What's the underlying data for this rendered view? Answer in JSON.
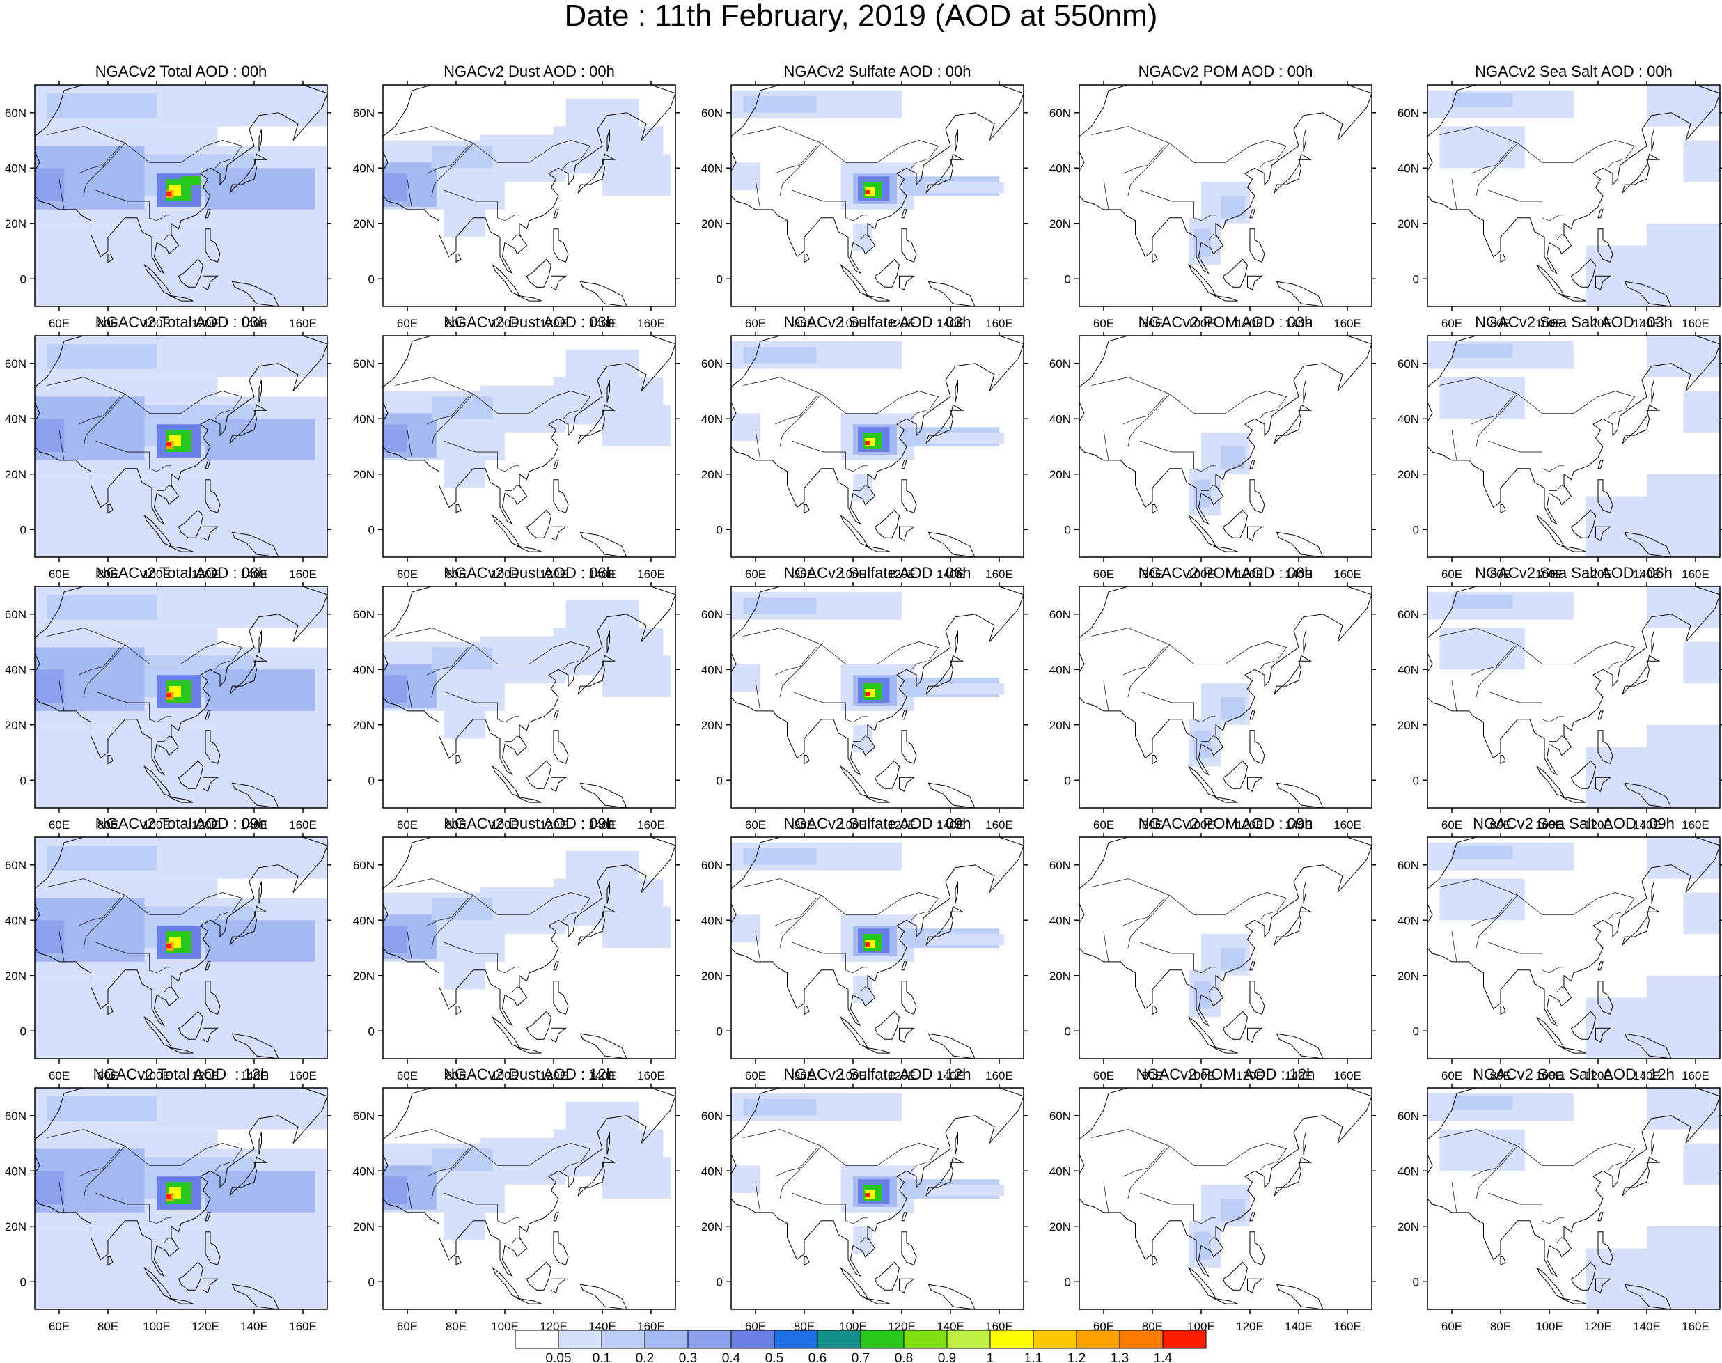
{
  "title": "Date : 11th February, 2019 (AOD at 550nm)",
  "panel_titles": [
    [
      "NGACv2 Total AOD : 00h",
      "NGACv2 Dust AOD : 00h",
      "NGACv2 Sulfate AOD : 00h",
      "NGACv2 POM AOD : 00h",
      "NGACv2 Sea Salt AOD : 00h"
    ],
    [
      "NGACv2 Total AOD : 03h",
      "NGACv2 Dust AOD : 03h",
      "NGACv2 Sulfate AOD : 03h",
      "NGACv2 POM AOD : 03h",
      "NGACv2 Sea Salt AOD : 03h"
    ],
    [
      "NGACv2 Total AOD : 06h",
      "NGACv2 Dust AOD : 06h",
      "NGACv2 Sulfate AOD : 06h",
      "NGACv2 POM AOD : 06h",
      "NGACv2 Sea Salt AOD : 06h"
    ],
    [
      "NGACv2 Total AOD : 09h",
      "NGACv2 Dust AOD : 09h",
      "NGACv2 Sulfate AOD : 09h",
      "NGACv2 POM AOD : 09h",
      "NGACv2 Sea Salt  AOD : 09h"
    ],
    [
      "NGACv2 Total AOD  : 12h",
      "NGACv2 Dust AOD : 12h",
      "NGACv2 Sulfate AOD : 12h",
      "NGACv2 POM  AOD : 12h",
      "NGACv2 Sea Salt  AOD : 12h"
    ]
  ],
  "axes": {
    "lon_ticks": [
      "60E",
      "80E",
      "100E",
      "120E",
      "140E",
      "160E"
    ],
    "lat_ticks": [
      "60N",
      "40N",
      "20N",
      "0"
    ],
    "lon_range": [
      50,
      170
    ],
    "lat_range": [
      -10,
      70
    ]
  },
  "colorbar": {
    "labels": [
      "0.05",
      "0.1",
      "0.2",
      "0.3",
      "0.4",
      "0.5",
      "0.6",
      "0.7",
      "0.8",
      "0.9",
      "1",
      "1.1",
      "1.2",
      "1.3",
      "1.4"
    ],
    "colors": [
      "#ffffff",
      "#d6e0fa",
      "#bccdf6",
      "#a4b8f2",
      "#8ca2ef",
      "#6a7ee8",
      "#1d6fe8",
      "#12908c",
      "#27c81a",
      "#7ee010",
      "#bdf040",
      "#ffff00",
      "#ffc800",
      "#ffa000",
      "#ff7800",
      "#ff1e00"
    ]
  },
  "colors": {
    "map_outline": "#000000",
    "low_aod": "#d6e0fa",
    "mid_aod": "#a4b8f2"
  }
}
